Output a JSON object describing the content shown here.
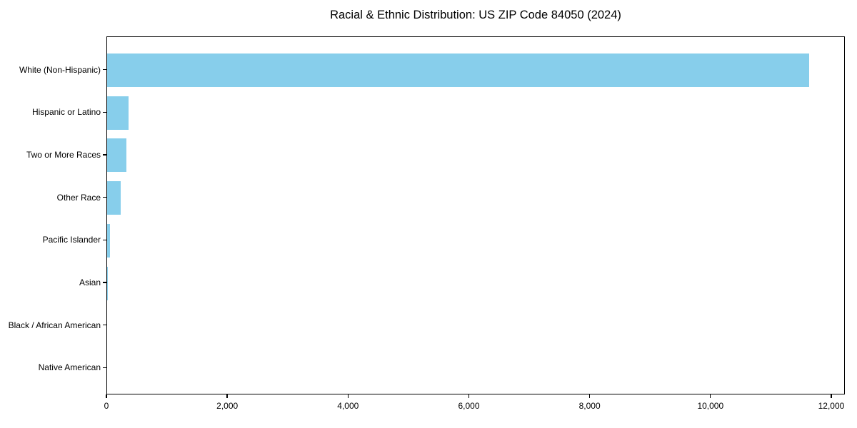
{
  "chart_data": {
    "type": "bar",
    "orientation": "horizontal",
    "title": "Racial & Ethnic Distribution: US ZIP Code 84050 (2024)",
    "categories": [
      "White (Non-Hispanic)",
      "Hispanic or Latino",
      "Two or More Races",
      "Other Race",
      "Pacific Islander",
      "Asian",
      "Black / African American",
      "Native American"
    ],
    "values": [
      11620,
      360,
      320,
      230,
      50,
      10,
      0,
      0
    ],
    "xlabel": "",
    "ylabel": "",
    "xlim": [
      0,
      12225
    ],
    "x_ticks": [
      0,
      2000,
      4000,
      6000,
      8000,
      10000,
      12000
    ],
    "x_tick_labels": [
      "0",
      "2,000",
      "4,000",
      "6,000",
      "8,000",
      "10,000",
      "12,000"
    ],
    "bar_color": "#87CEEB",
    "axis_color": "#000000",
    "background_color": "#FFFFFF",
    "grid": false,
    "legend": null
  }
}
